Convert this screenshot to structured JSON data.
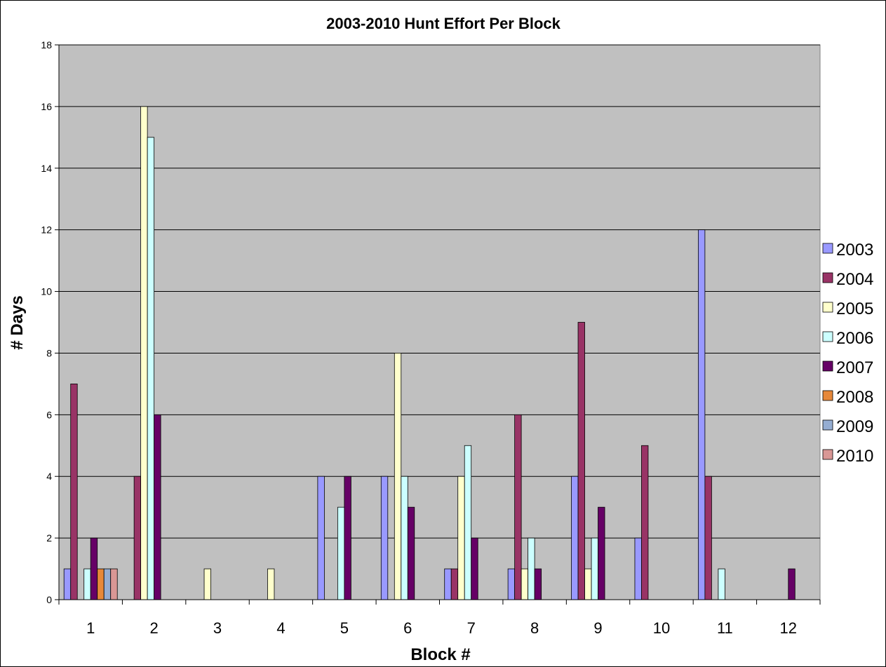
{
  "chart_data": {
    "type": "bar",
    "title": "2003-2010 Hunt Effort Per Block",
    "xlabel": "Block #",
    "ylabel": "# Days",
    "ylim": [
      0,
      18
    ],
    "yticks": [
      0,
      2,
      4,
      6,
      8,
      10,
      12,
      14,
      16,
      18
    ],
    "grid": true,
    "legend_position": "right",
    "categories": [
      "1",
      "2",
      "3",
      "4",
      "5",
      "6",
      "7",
      "8",
      "9",
      "10",
      "11",
      "12"
    ],
    "series": [
      {
        "name": "2003",
        "color": "#9999ff",
        "values": [
          1,
          0,
          0,
          0,
          4,
          4,
          1,
          1,
          4,
          2,
          12,
          0
        ]
      },
      {
        "name": "2004",
        "color": "#993366",
        "values": [
          7,
          4,
          0,
          0,
          0,
          0,
          1,
          6,
          9,
          5,
          4,
          0
        ]
      },
      {
        "name": "2005",
        "color": "#ffffcc",
        "values": [
          0,
          16,
          1,
          1,
          0,
          8,
          4,
          1,
          1,
          0,
          0,
          0
        ]
      },
      {
        "name": "2006",
        "color": "#ccffff",
        "values": [
          1,
          15,
          0,
          0,
          3,
          4,
          5,
          2,
          2,
          0,
          1,
          0
        ]
      },
      {
        "name": "2007",
        "color": "#660066",
        "values": [
          2,
          6,
          0,
          0,
          4,
          3,
          2,
          1,
          3,
          0,
          0,
          1
        ]
      },
      {
        "name": "2008",
        "color": "#e6883a",
        "values": [
          1,
          0,
          0,
          0,
          0,
          0,
          0,
          0,
          0,
          0,
          0,
          0
        ]
      },
      {
        "name": "2009",
        "color": "#95add2",
        "values": [
          1,
          0,
          0,
          0,
          0,
          0,
          0,
          0,
          0,
          0,
          0,
          0
        ]
      },
      {
        "name": "2010",
        "color": "#d99795",
        "values": [
          1,
          0,
          0,
          0,
          0,
          0,
          0,
          0,
          0,
          0,
          0,
          0
        ]
      }
    ]
  }
}
